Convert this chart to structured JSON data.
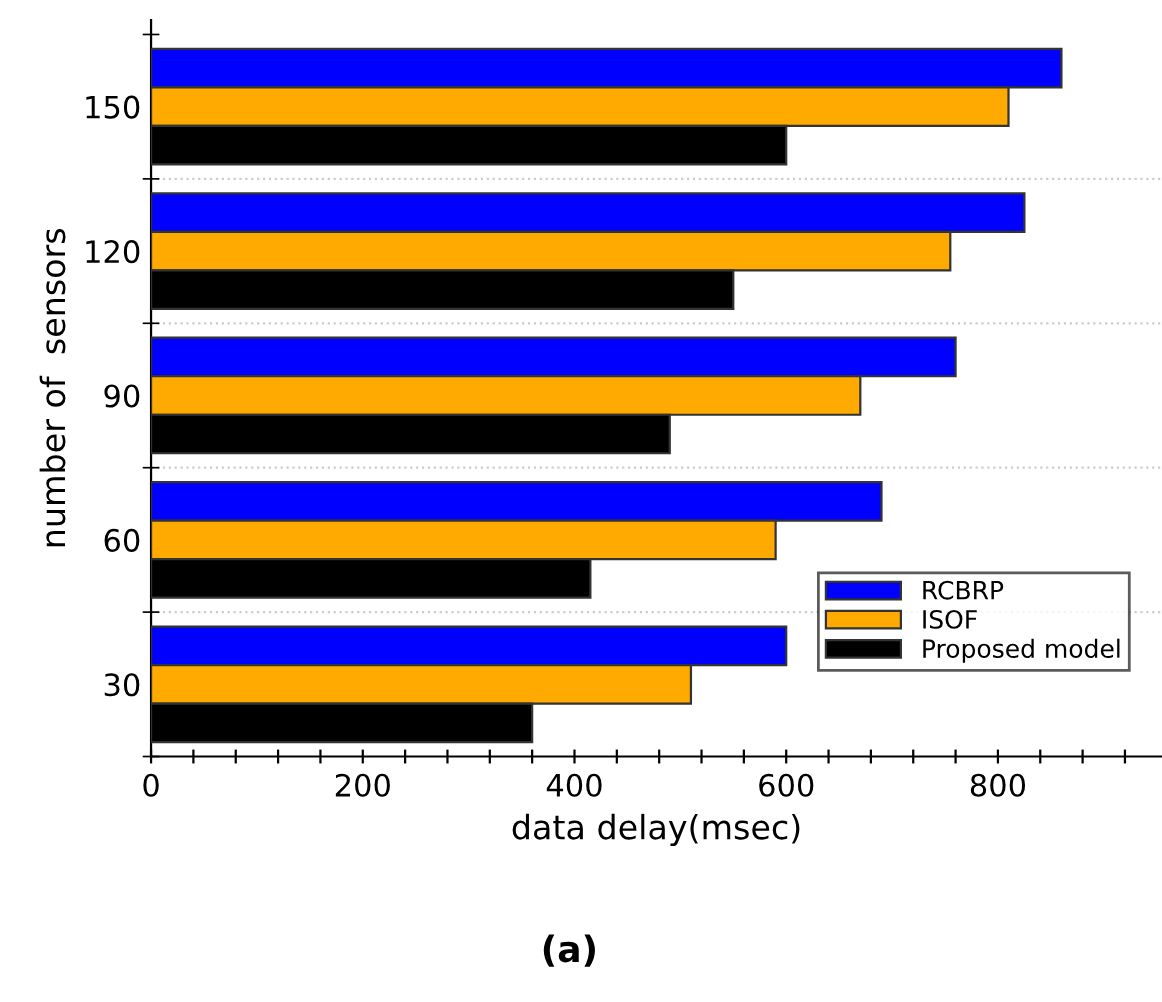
{
  "chart_data": {
    "type": "bar",
    "orientation": "horizontal",
    "xlabel": "data delay(msec)",
    "ylabel": "number of  sensors",
    "categories": [
      "150",
      "120",
      "90",
      "60",
      "30"
    ],
    "series": [
      {
        "name": "RCBRP",
        "color": "#0000ff",
        "values": [
          860,
          825,
          760,
          690,
          600
        ]
      },
      {
        "name": "ISOF",
        "color": "#ffaa00",
        "values": [
          810,
          755,
          670,
          590,
          510
        ]
      },
      {
        "name": "Proposed model",
        "color": "#000000",
        "values": [
          600,
          550,
          490,
          415,
          360
        ]
      }
    ],
    "xlim": [
      0,
      955
    ],
    "xticks": [
      0,
      {
        "value": 40,
        "label": null
      },
      {
        "value": 80,
        "label": null
      },
      {
        "value": 120,
        "label": null
      },
      {
        "value": 160,
        "label": null
      },
      200,
      {
        "value": 240,
        "label": null
      },
      {
        "value": 280,
        "label": null
      },
      {
        "value": 320,
        "label": null
      },
      {
        "value": 360,
        "label": null
      },
      400,
      {
        "value": 440,
        "label": null
      },
      {
        "value": 480,
        "label": null
      },
      {
        "value": 520,
        "label": null
      },
      {
        "value": 560,
        "label": null
      },
      600,
      {
        "value": 640,
        "label": null
      },
      {
        "value": 680,
        "label": null
      },
      {
        "value": 720,
        "label": null
      },
      {
        "value": 760,
        "label": null
      },
      800,
      {
        "value": 840,
        "label": null
      },
      {
        "value": 880,
        "label": null
      },
      {
        "value": 920,
        "label": null
      }
    ],
    "grid": "y",
    "legend": "bottom right",
    "annotations": [
      "(a)"
    ]
  }
}
